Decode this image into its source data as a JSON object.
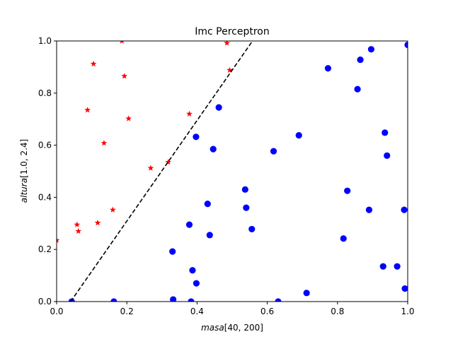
{
  "chart_data": {
    "type": "scatter",
    "title": "Imc Perceptron",
    "xlabel_italic": "masa",
    "xlabel_rest": "[40, 200]",
    "ylabel_italic": "altura",
    "ylabel_rest": "[1.0, 2.4]",
    "xlim": [
      0,
      1
    ],
    "ylim": [
      0,
      1
    ],
    "x_ticks": [
      0.0,
      0.2,
      0.4,
      0.6,
      0.8,
      1.0
    ],
    "y_ticks": [
      0.0,
      0.2,
      0.4,
      0.6,
      0.8,
      1.0
    ],
    "x_tick_labels": [
      "0.0",
      "0.2",
      "0.4",
      "0.6",
      "0.8",
      "1.0"
    ],
    "y_tick_labels": [
      "0.0",
      "0.2",
      "0.4",
      "0.6",
      "0.8",
      "1.0"
    ],
    "grid": false,
    "series": [
      {
        "marker": "star",
        "color": "#ff0000",
        "points": [
          [
            0.0,
            0.235
          ],
          [
            0.058,
            0.295
          ],
          [
            0.062,
            0.27
          ],
          [
            0.088,
            0.735
          ],
          [
            0.105,
            0.912
          ],
          [
            0.117,
            0.302
          ],
          [
            0.135,
            0.608
          ],
          [
            0.16,
            0.352
          ],
          [
            0.186,
            1.0
          ],
          [
            0.193,
            0.865
          ],
          [
            0.205,
            0.702
          ],
          [
            0.268,
            0.512
          ],
          [
            0.318,
            0.535
          ],
          [
            0.378,
            0.72
          ],
          [
            0.485,
            0.992
          ],
          [
            0.493,
            0.888
          ]
        ]
      },
      {
        "marker": "circle",
        "color": "#0000ff",
        "points": [
          [
            0.043,
            0.0
          ],
          [
            0.163,
            0.0
          ],
          [
            0.33,
            0.192
          ],
          [
            0.332,
            0.008
          ],
          [
            0.378,
            0.295
          ],
          [
            0.383,
            0.0
          ],
          [
            0.387,
            0.12
          ],
          [
            0.397,
            0.632
          ],
          [
            0.398,
            0.07
          ],
          [
            0.43,
            0.375
          ],
          [
            0.436,
            0.255
          ],
          [
            0.446,
            0.585
          ],
          [
            0.462,
            0.745
          ],
          [
            0.537,
            0.43
          ],
          [
            0.54,
            0.36
          ],
          [
            0.556,
            0.278
          ],
          [
            0.618,
            0.577
          ],
          [
            0.631,
            0.0
          ],
          [
            0.69,
            0.638
          ],
          [
            0.712,
            0.033
          ],
          [
            0.773,
            0.895
          ],
          [
            0.817,
            0.242
          ],
          [
            0.828,
            0.425
          ],
          [
            0.857,
            0.815
          ],
          [
            0.865,
            0.928
          ],
          [
            0.89,
            0.352
          ],
          [
            0.896,
            0.968
          ],
          [
            0.93,
            0.135
          ],
          [
            0.935,
            0.648
          ],
          [
            0.941,
            0.56
          ],
          [
            0.97,
            0.135
          ],
          [
            0.99,
            0.352
          ],
          [
            0.992,
            0.05
          ],
          [
            1.0,
            0.985
          ]
        ]
      }
    ],
    "decision_line": {
      "style": "dashed",
      "color": "#000000",
      "from": [
        0.04,
        0.0
      ],
      "to": [
        0.558,
        1.0
      ]
    }
  }
}
